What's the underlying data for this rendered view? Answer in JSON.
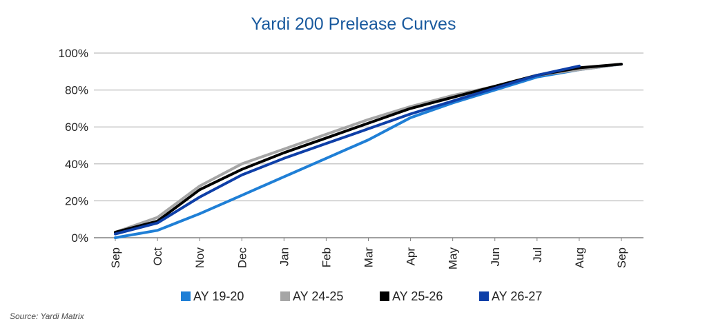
{
  "chart_data": {
    "type": "line",
    "title": "Yardi 200 Prelease Curves",
    "xlabel": "",
    "ylabel": "",
    "categories": [
      "Sep",
      "Oct",
      "Nov",
      "Dec",
      "Jan",
      "Feb",
      "Mar",
      "Apr",
      "May",
      "Jun",
      "Jul",
      "Aug",
      "Sep"
    ],
    "ylim": [
      0,
      100
    ],
    "yticks": [
      0,
      20,
      40,
      60,
      80,
      100
    ],
    "ytick_labels": [
      "0%",
      "20%",
      "40%",
      "60%",
      "80%",
      "100%"
    ],
    "grid": true,
    "legend_position": "bottom",
    "series": [
      {
        "name": "AY 19-20",
        "color": "#1f7fd6",
        "values": [
          0,
          4,
          13,
          23,
          33,
          43,
          53,
          65,
          73,
          80,
          87,
          91,
          94
        ]
      },
      {
        "name": "AY 24-25",
        "color": "#a6a6a6",
        "values": [
          3,
          11,
          28,
          40,
          48,
          56,
          64,
          71,
          77,
          82,
          88,
          91,
          94
        ]
      },
      {
        "name": "AY 25-26",
        "color": "#000000",
        "values": [
          3,
          9,
          26,
          37,
          46,
          54,
          62,
          70,
          76,
          82,
          88,
          92,
          94
        ]
      },
      {
        "name": "AY 26-27",
        "color": "#0e3fa8",
        "values": [
          2,
          8,
          22,
          34,
          43,
          51,
          59,
          67,
          74,
          81,
          88,
          93,
          null
        ]
      }
    ],
    "source_note": "Source: Yardi Matrix"
  },
  "colors": {
    "title": "#1a5a9e",
    "grid": "#c8c8c8",
    "axis": "#808080",
    "tick_text": "#222222"
  }
}
